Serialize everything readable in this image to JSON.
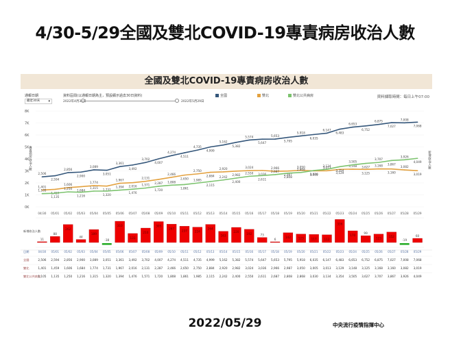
{
  "page": {
    "title": "4/30-5/29全國及雙北COVID-19專責病房收治人數",
    "date": "2022/05/29",
    "source": "中央流行疫情指揮中心"
  },
  "dashboard": {
    "header": "全國及雙北COVID-19專責病房收治人數",
    "period_label": "通報日期",
    "period_select": "最近30天",
    "range_label": "資料區間(以通報日期為主，預設顯示過去30日資料)",
    "range_start": "2022年4月30日",
    "range_end": "2022年5月29日",
    "update_note": "資料擷取時間：每日上午07:00",
    "legend": [
      {
        "label": "全國",
        "color": "#34567a"
      },
      {
        "label": "雙北",
        "color": "#e3a13f"
      },
      {
        "label": "雙北公共病房",
        "color": "#7cc36e"
      }
    ],
    "right_axis_label": "新增收治人數",
    "left_axis_label": "專責病房收治人數",
    "bar_axis_label": "新增收治人數",
    "table_row_labels": [
      "全國",
      "雙北",
      "雙北公共病房"
    ]
  },
  "chart_data": [
    {
      "type": "line",
      "title": "全國及雙北COVID-19專責病房收治人數",
      "x": [
        "04/30",
        "05/01",
        "05/02",
        "05/03",
        "05/04",
        "05/05",
        "05/06",
        "05/07",
        "05/08",
        "05/09",
        "05/10",
        "05/11",
        "05/12",
        "05/13",
        "05/14",
        "05/15",
        "05/16",
        "05/17",
        "05/18",
        "05/19",
        "05/20",
        "05/21",
        "05/22",
        "05/23",
        "05/24",
        "05/25",
        "05/26",
        "05/27",
        "05/28",
        "05/29"
      ],
      "yticks": [
        "0K",
        "1K",
        "2K",
        "3K",
        "4K",
        "5K",
        "6K",
        "7K",
        "8K"
      ],
      "ylim": [
        0,
        8000
      ],
      "series": [
        {
          "name": "全國",
          "color": "#34567a",
          "values": [
            2506,
            2594,
            2856,
            2900,
            3089,
            3051,
            3361,
            3492,
            3702,
            4007,
            4274,
            4511,
            4735,
            4999,
            5162,
            5382,
            5574,
            5647,
            5653,
            5795,
            5918,
            6035,
            6147,
            6483,
            6653,
            6752,
            6875,
            7027,
            7008,
            7068
          ]
        },
        {
          "name": "雙北",
          "color": "#e3a13f",
          "values": [
            1401,
            1459,
            1606,
            1684,
            1774,
            1731,
            1967,
            2016,
            2131,
            2287,
            2466,
            2650,
            2750,
            2884,
            2920,
            2982,
            3024,
            3036,
            2966,
            2987,
            3050,
            3005,
            3013,
            3129,
            3148,
            3125,
            3168,
            3160,
            3082,
            3019
          ]
        },
        {
          "name": "雙北公共病房",
          "color": "#7cc36e",
          "values": [
            1105,
            1135,
            1250,
            1216,
            1315,
            1320,
            1394,
            1476,
            1571,
            1720,
            1808,
            1861,
            1985,
            2115,
            2242,
            2400,
            2550,
            2611,
            2687,
            2808,
            2868,
            3030,
            3134,
            3354,
            3505,
            3627,
            3707,
            3867,
            3926,
            4049
          ]
        }
      ],
      "grid": true
    },
    {
      "type": "bar",
      "title": "新增收治人數",
      "categories": [
        "04/30",
        "05/01",
        "05/02",
        "05/03",
        "05/04",
        "05/05",
        "05/06",
        "05/07",
        "05/08",
        "05/09",
        "05/10",
        "05/11",
        "05/12",
        "05/13",
        "05/14",
        "05/15",
        "05/16",
        "05/17",
        "05/18",
        "05/19",
        "05/20",
        "05/21",
        "05/22",
        "05/23",
        "05/24",
        "05/25",
        "05/26",
        "05/27",
        "05/28",
        "05/29"
      ],
      "values": [
        11,
        88,
        262,
        44,
        189,
        -38,
        310,
        131,
        210,
        305,
        267,
        237,
        224,
        264,
        163,
        220,
        192,
        73,
        6,
        142,
        123,
        117,
        112,
        336,
        170,
        99,
        123,
        152,
        -19,
        60
      ],
      "positive_color": "#ee0000",
      "negative_color": "#22aa22"
    }
  ]
}
